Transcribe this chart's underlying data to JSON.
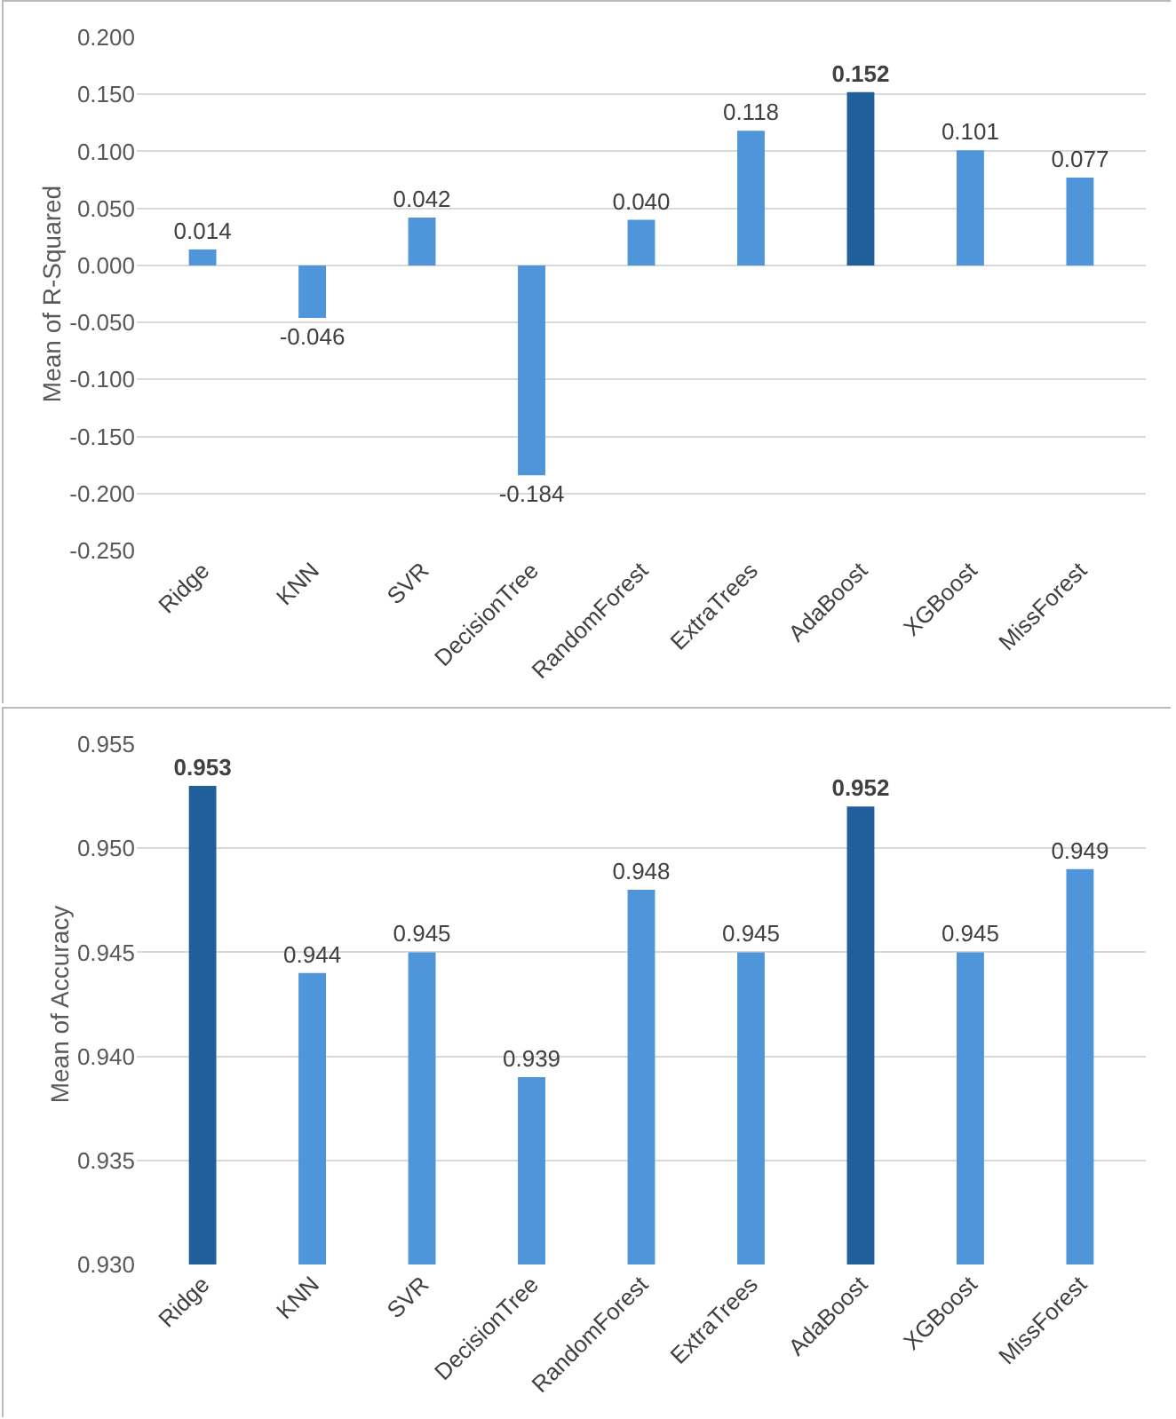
{
  "chart_data": [
    {
      "type": "bar",
      "ylabel": "Mean of R-Squared",
      "categories": [
        "Ridge",
        "KNN",
        "SVR",
        "DecisionTree",
        "RandomForest",
        "ExtraTrees",
        "AdaBoost",
        "XGBoost",
        "MissForest"
      ],
      "values": [
        0.014,
        -0.046,
        0.042,
        -0.184,
        0.04,
        0.118,
        0.152,
        0.101,
        0.077
      ],
      "colors": [
        "#4e95d9",
        "#4e95d9",
        "#4e95d9",
        "#4e95d9",
        "#4e95d9",
        "#4e95d9",
        "#215f9a",
        "#4e95d9",
        "#4e95d9"
      ],
      "ylim": [
        -0.25,
        0.2
      ],
      "yticks": [
        {
          "value": -0.25,
          "label": "-0.250"
        },
        {
          "value": -0.2,
          "label": "-0.200"
        },
        {
          "value": -0.15,
          "label": "-0.150"
        },
        {
          "value": -0.1,
          "label": "-0.100"
        },
        {
          "value": -0.05,
          "label": "-0.050"
        },
        {
          "value": 0,
          "label": "0.000"
        },
        {
          "value": 0.05,
          "label": "0.050"
        },
        {
          "value": 0.1,
          "label": "0.100"
        },
        {
          "value": 0.15,
          "label": "0.150"
        },
        {
          "value": 0.2,
          "label": "0.200"
        }
      ],
      "value_labels": [
        "0.014",
        "-0.046",
        "0.042",
        "-0.184",
        "0.040",
        "0.118",
        "0.152",
        "0.101",
        "0.077"
      ],
      "grid": "y"
    },
    {
      "type": "bar",
      "ylabel": "Mean of Accuracy",
      "categories": [
        "Ridge",
        "KNN",
        "SVR",
        "DecisionTree",
        "RandomForest",
        "ExtraTrees",
        "AdaBoost",
        "XGBoost",
        "MissForest"
      ],
      "values": [
        0.953,
        0.944,
        0.945,
        0.939,
        0.948,
        0.945,
        0.952,
        0.945,
        0.949
      ],
      "colors": [
        "#215f9a",
        "#4e95d9",
        "#4e95d9",
        "#4e95d9",
        "#4e95d9",
        "#4e95d9",
        "#215f9a",
        "#4e95d9",
        "#4e95d9"
      ],
      "ylim": [
        0.93,
        0.955
      ],
      "yticks": [
        {
          "value": 0.93,
          "label": "0.930"
        },
        {
          "value": 0.935,
          "label": "0.935"
        },
        {
          "value": 0.94,
          "label": "0.940"
        },
        {
          "value": 0.945,
          "label": "0.945"
        },
        {
          "value": 0.95,
          "label": "0.950"
        },
        {
          "value": 0.955,
          "label": "0.955"
        }
      ],
      "grid": "y",
      "data_labels": true
    }
  ]
}
